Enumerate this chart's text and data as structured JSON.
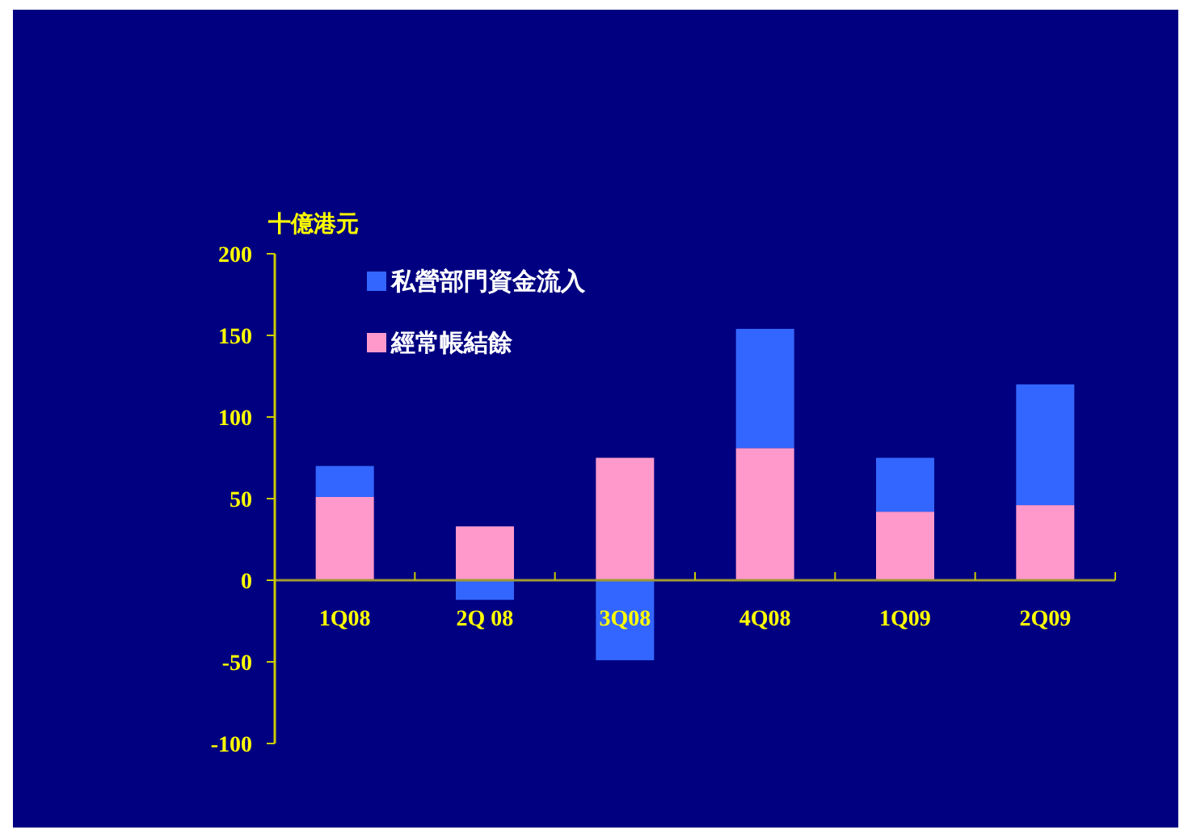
{
  "chart_data": {
    "type": "bar",
    "ylabel": "十億港元",
    "categories": [
      "1Q08",
      "2Q 08",
      "3Q08",
      "4Q08",
      "1Q09",
      "2Q09"
    ],
    "series": [
      {
        "name": "經常帳結餘",
        "color": "#ff99cc",
        "values": [
          51,
          33,
          75,
          81,
          42,
          46
        ]
      },
      {
        "name": "私營部門資金流入",
        "color": "#3366ff",
        "values": [
          19,
          -12,
          -49,
          73,
          33,
          74
        ]
      }
    ],
    "stacked": true,
    "ylim": [
      -100,
      200
    ],
    "yticks": [
      -100,
      -50,
      0,
      50,
      100,
      150,
      200
    ],
    "legend": "top left",
    "grid": false
  }
}
